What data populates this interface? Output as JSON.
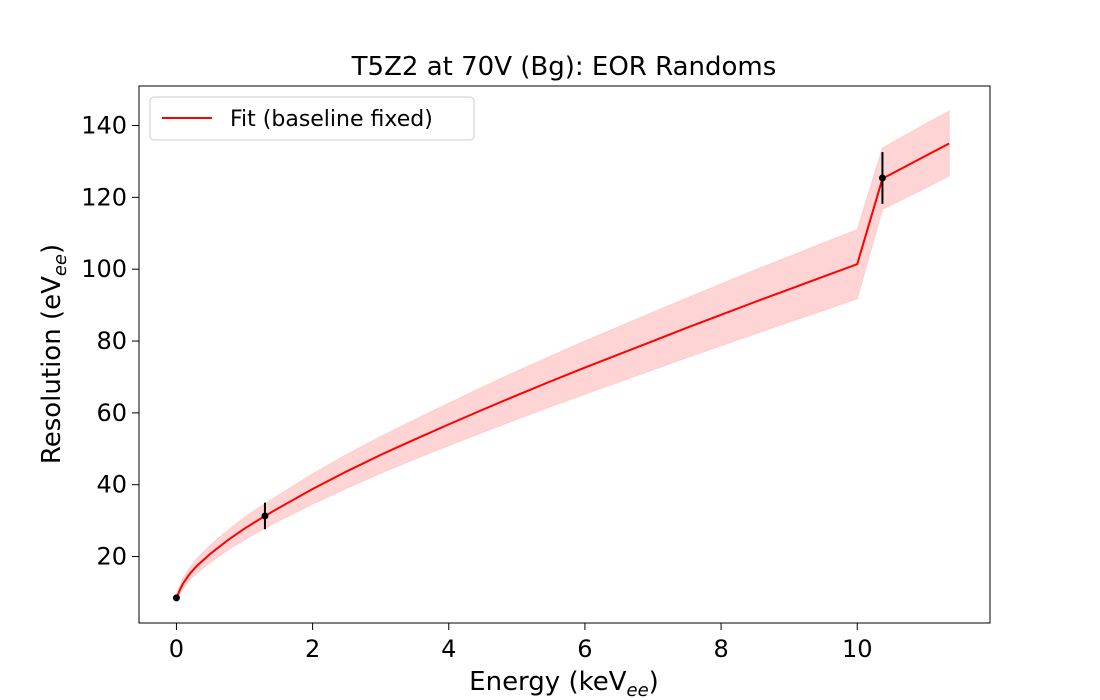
{
  "chart_data": {
    "type": "line",
    "title": "T5Z2 at 70V (Bg):  EOR Randoms",
    "xlabel": "Energy (keV",
    "xlabel_sub": "ee",
    "xlabel_end": ")",
    "ylabel": "Resolution (eV",
    "ylabel_sub": "ee",
    "ylabel_end": ")",
    "xlim": [
      -0.55,
      11.95
    ],
    "ylim": [
      1.5,
      151
    ],
    "xticks": [
      0,
      2,
      4,
      6,
      8,
      10
    ],
    "yticks": [
      20,
      40,
      60,
      80,
      100,
      120,
      140
    ],
    "grid": false,
    "legend_position": "top-left",
    "series": [
      {
        "name": "Fit (baseline fixed)",
        "color": "#ff0000",
        "band_color": "#ffcccc",
        "x": [
          0,
          0.05,
          0.1,
          0.2,
          0.3,
          0.5,
          0.75,
          1,
          1.3,
          1.5,
          2,
          2.5,
          3,
          3.5,
          4,
          4.5,
          5,
          5.5,
          6,
          6.5,
          7,
          7.5,
          8,
          8.5,
          9,
          9.5,
          10,
          10.37,
          10.5,
          11,
          11.35
        ],
        "y": [
          8.5,
          10.7,
          12.6,
          15.3,
          17.4,
          20.8,
          24.5,
          27.8,
          31.3,
          33.5,
          38.8,
          43.7,
          48.3,
          52.6,
          56.8,
          60.9,
          64.9,
          68.8,
          72.6,
          76.3,
          80.0,
          83.7,
          87.3,
          90.9,
          94.4,
          97.9,
          101.4,
          125.2,
          126.5,
          131.5,
          135.0
        ],
        "band_lower": [
          7.9,
          9.6,
          11.2,
          13.6,
          15.4,
          18.4,
          21.8,
          24.7,
          27.9,
          29.9,
          34.6,
          39.0,
          43.2,
          47.1,
          50.9,
          54.6,
          58.2,
          61.8,
          65.2,
          68.6,
          72.0,
          75.4,
          78.7,
          82.0,
          85.3,
          88.5,
          91.8,
          116.7,
          117.9,
          122.6,
          126.0
        ],
        "band_upper": [
          9.1,
          11.8,
          14.0,
          17.0,
          19.4,
          23.2,
          27.2,
          30.9,
          34.7,
          37.1,
          43.0,
          48.4,
          53.4,
          58.1,
          62.7,
          67.2,
          71.6,
          75.8,
          80.0,
          84.0,
          88.0,
          92.0,
          95.9,
          99.8,
          103.5,
          107.3,
          111.0,
          133.7,
          135.1,
          140.4,
          144.0
        ]
      },
      {
        "name": "",
        "color": "#000000",
        "points": [
          {
            "x": 0.0,
            "y": 8.5,
            "yerr": 0
          },
          {
            "x": 1.3,
            "y": 31.3,
            "yerr": 3.7
          },
          {
            "x": 10.37,
            "y": 125.4,
            "yerr": 7.2
          }
        ]
      }
    ]
  }
}
